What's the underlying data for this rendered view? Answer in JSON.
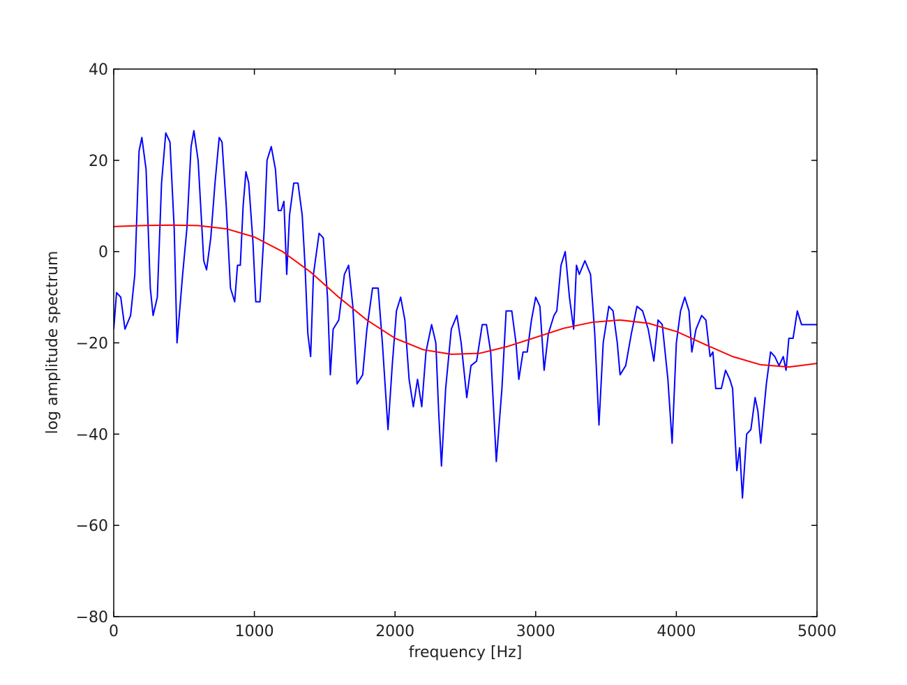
{
  "chart_data": {
    "type": "line",
    "xlabel": "frequency [Hz]",
    "ylabel": "log amplitude spectrum",
    "xlim": [
      0,
      5000
    ],
    "ylim": [
      -80,
      40
    ],
    "xticks": [
      0,
      1000,
      2000,
      3000,
      4000,
      5000
    ],
    "yticks": [
      {
        "value": -80,
        "label": "−80"
      },
      {
        "value": -60,
        "label": "−60"
      },
      {
        "value": -40,
        "label": "−40"
      },
      {
        "value": -20,
        "label": "−20"
      },
      0,
      20,
      40
    ],
    "grid": false,
    "series": [
      {
        "color": "#0000ff",
        "x": [
          0,
          20,
          50,
          80,
          120,
          150,
          180,
          200,
          230,
          260,
          280,
          310,
          340,
          370,
          400,
          430,
          450,
          490,
          520,
          550,
          570,
          600,
          640,
          660,
          690,
          720,
          750,
          770,
          800,
          830,
          860,
          880,
          900,
          920,
          940,
          960,
          990,
          1010,
          1040,
          1070,
          1090,
          1120,
          1150,
          1170,
          1190,
          1210,
          1230,
          1250,
          1280,
          1310,
          1340,
          1360,
          1380,
          1400,
          1420,
          1460,
          1490,
          1520,
          1540,
          1560,
          1600,
          1640,
          1670,
          1700,
          1730,
          1770,
          1800,
          1840,
          1880,
          1910,
          1950,
          1980,
          2010,
          2040,
          2070,
          2100,
          2130,
          2160,
          2190,
          2220,
          2260,
          2290,
          2310,
          2330,
          2360,
          2400,
          2440,
          2470,
          2510,
          2540,
          2580,
          2620,
          2650,
          2680,
          2720,
          2760,
          2790,
          2830,
          2860,
          2880,
          2910,
          2940,
          2970,
          3000,
          3030,
          3060,
          3090,
          3130,
          3150,
          3180,
          3210,
          3240,
          3270,
          3290,
          3310,
          3350,
          3390,
          3420,
          3450,
          3480,
          3520,
          3550,
          3580,
          3600,
          3640,
          3680,
          3720,
          3760,
          3800,
          3840,
          3870,
          3900,
          3940,
          3970,
          4000,
          4030,
          4060,
          4090,
          4110,
          4140,
          4180,
          4210,
          4240,
          4260,
          4280,
          4320,
          4350,
          4380,
          4400,
          4430,
          4450,
          4470,
          4500,
          4530,
          4560,
          4580,
          4600,
          4640,
          4670,
          4700,
          4730,
          4760,
          4780,
          4800,
          4830,
          4860,
          4890,
          5000
        ],
        "values": [
          -17,
          -9,
          -10,
          -17,
          -14,
          -5,
          22,
          25,
          18,
          -8,
          -14,
          -10,
          15,
          26,
          24,
          5,
          -20,
          -5,
          5,
          23,
          26.5,
          20,
          -2,
          -4,
          3,
          15,
          25,
          24,
          10,
          -8,
          -11,
          -3,
          -3,
          10,
          17.5,
          15,
          2,
          -11,
          -11,
          5,
          20,
          23,
          18,
          9,
          9,
          11,
          -5,
          8,
          15,
          15,
          8,
          -3,
          -18,
          -23,
          -5,
          4,
          3,
          -10,
          -27,
          -17,
          -15,
          -5,
          -3,
          -12,
          -29,
          -27,
          -17,
          -8,
          -8,
          -20,
          -39,
          -25,
          -13,
          -10,
          -15,
          -28,
          -34,
          -28,
          -34,
          -22,
          -16,
          -20,
          -35,
          -47,
          -30,
          -17,
          -14,
          -20,
          -32,
          -25,
          -24,
          -16,
          -16,
          -22,
          -46,
          -30,
          -13,
          -13,
          -20,
          -28,
          -22,
          -22,
          -15,
          -10,
          -12,
          -26,
          -18,
          -14,
          -13,
          -3,
          0,
          -10,
          -17,
          -3,
          -5,
          -2,
          -5,
          -18,
          -38,
          -20,
          -12,
          -13,
          -20,
          -27,
          -25,
          -18,
          -12,
          -13,
          -17,
          -24,
          -15,
          -16,
          -28,
          -42,
          -20,
          -13,
          -10,
          -13,
          -22,
          -17,
          -14,
          -15,
          -23,
          -22,
          -30,
          -30,
          -26,
          -28,
          -30,
          -48,
          -43,
          -54,
          -40,
          -39,
          -32,
          -35,
          -42,
          -29,
          -22,
          -23,
          -25,
          -23,
          -26,
          -19,
          -19,
          -13,
          -16,
          -16
        ]
      },
      {
        "color": "#ff0000",
        "x": [
          0,
          200,
          400,
          600,
          800,
          1000,
          1200,
          1400,
          1600,
          1800,
          2000,
          2200,
          2400,
          2600,
          2800,
          3000,
          3200,
          3400,
          3600,
          3800,
          4000,
          4200,
          4400,
          4600,
          4800,
          5000
        ],
        "values": [
          5.5,
          5.7,
          5.8,
          5.7,
          5,
          3.2,
          0,
          -4.5,
          -10,
          -15,
          -19,
          -21.5,
          -22.5,
          -22.3,
          -20.8,
          -18.8,
          -16.8,
          -15.5,
          -15,
          -15.7,
          -17.5,
          -20.3,
          -23,
          -24.8,
          -25.3,
          -24.5
        ]
      }
    ]
  }
}
